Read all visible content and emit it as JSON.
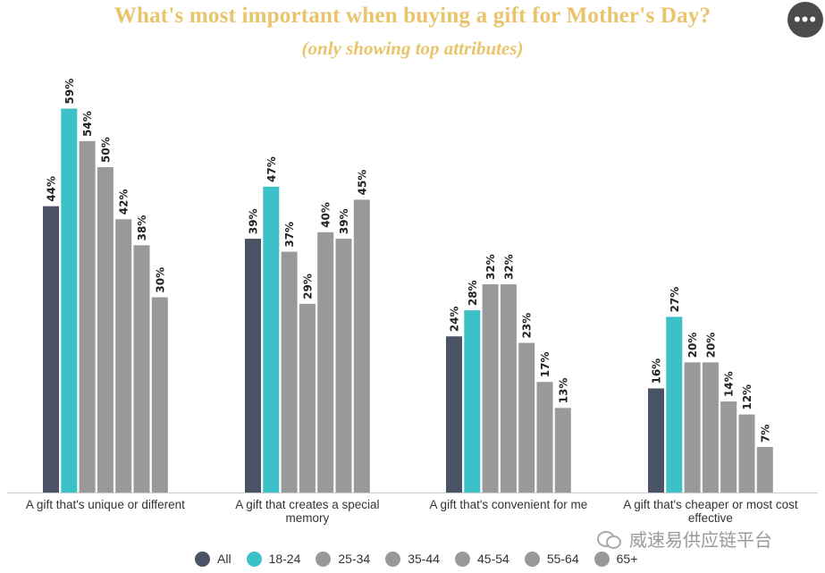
{
  "header": {
    "title": "What's most important when buying a gift for Mother's Day?",
    "subtitle": "(only showing top attributes)",
    "more_icon": "more-horizontal-icon",
    "more_glyph": "•••"
  },
  "watermark": {
    "text": "威速易供应链平台",
    "icon": "wechat-icon"
  },
  "colors": {
    "all": "#4a5265",
    "age_18_24": "#3cc1c9",
    "other": "#999999",
    "title": "#e9c46a"
  },
  "chart_data": {
    "type": "bar",
    "title": "What's most important when buying a gift for Mother's Day?",
    "subtitle": "(only showing top attributes)",
    "categories": [
      [
        "A gift that's unique or different"
      ],
      [
        "A gift that creates a special",
        "memory"
      ],
      [
        "A gift that's convenient for me"
      ],
      [
        "A gift that's cheaper or most cost",
        "effective"
      ]
    ],
    "series": [
      {
        "name": "All",
        "color": "#4a5265",
        "values": [
          44,
          39,
          24,
          16
        ]
      },
      {
        "name": "18-24",
        "color": "#3cc1c9",
        "values": [
          59,
          47,
          28,
          27
        ]
      },
      {
        "name": "25-34",
        "color": "#999999",
        "values": [
          54,
          37,
          32,
          20
        ]
      },
      {
        "name": "35-44",
        "color": "#999999",
        "values": [
          50,
          29,
          32,
          20
        ]
      },
      {
        "name": "45-54",
        "color": "#999999",
        "values": [
          42,
          40,
          23,
          14
        ]
      },
      {
        "name": "55-64",
        "color": "#999999",
        "values": [
          38,
          39,
          17,
          12
        ]
      },
      {
        "name": "65+",
        "color": "#999999",
        "values": [
          30,
          45,
          13,
          7
        ]
      }
    ],
    "value_suffix": "%",
    "ylim": [
      0,
      60
    ],
    "grid": false,
    "legend_position": "bottom"
  }
}
